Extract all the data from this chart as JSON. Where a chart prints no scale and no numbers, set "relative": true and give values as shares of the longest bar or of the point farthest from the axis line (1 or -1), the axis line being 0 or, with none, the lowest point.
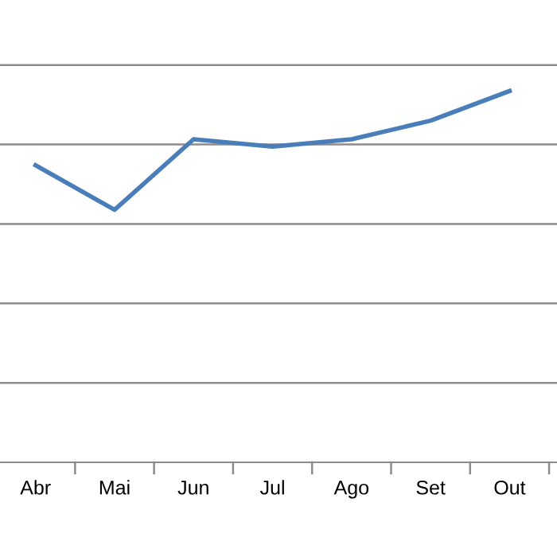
{
  "chart_data": {
    "type": "line",
    "relative": true,
    "categories": [
      "Abr",
      "Mai",
      "Jun",
      "Jul",
      "Ago",
      "Set",
      "Out"
    ],
    "series": [
      {
        "color": "#4a7ebb",
        "values": [
          0.8,
          0.68,
          0.87,
          0.85,
          0.87,
          0.92,
          1
        ]
      }
    ],
    "grid": "y",
    "line_style": "solid",
    "marker": "none"
  }
}
